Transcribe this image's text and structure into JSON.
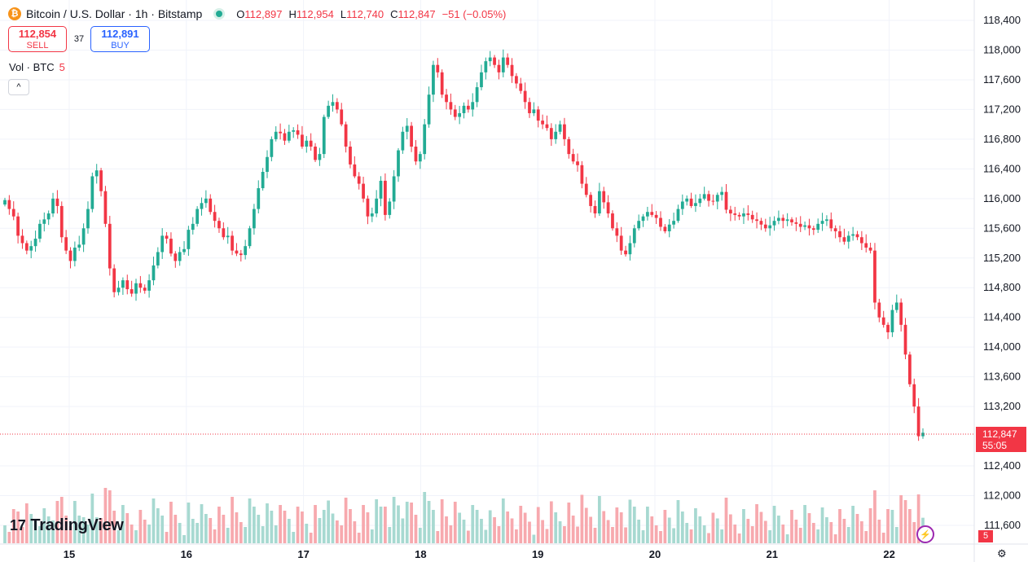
{
  "header": {
    "title": "Bitcoin / U.S. Dollar · 1h · Bitstamp",
    "coin_icon": "bitcoin-icon",
    "coin_glyph": "₿",
    "o_label": "O",
    "o_value": "112,897",
    "h_label": "H",
    "h_value": "112,954",
    "l_label": "L",
    "l_value": "112,740",
    "c_label": "C",
    "c_value": "112,847",
    "change": "−51 (−0.05%)"
  },
  "trade": {
    "sell_price": "112,854",
    "sell_label": "SELL",
    "buy_price": "112,891",
    "buy_label": "BUY",
    "spread": "37"
  },
  "volume_legend": {
    "label": "Vol · BTC",
    "value": "5"
  },
  "collapse_glyph": "^",
  "logo": {
    "text": "TradingView",
    "mark": "17"
  },
  "price_tag": {
    "price": "112,847",
    "countdown": "55:05"
  },
  "volume_tag": "5",
  "colors": {
    "up": "#22ab94",
    "down": "#f23645",
    "up_vol": "#a7d9d1",
    "down_vol": "#f7a9ae"
  },
  "chart_data": {
    "type": "candlestick",
    "symbol": "Bitcoin / U.S. Dollar",
    "interval": "1h",
    "exchange": "Bitstamp",
    "y_axis": {
      "ticks": [
        "118,400",
        "118,000",
        "117,600",
        "117,200",
        "116,800",
        "116,400",
        "116,000",
        "115,600",
        "115,200",
        "114,800",
        "114,400",
        "114,000",
        "113,600",
        "113,200",
        "112,400",
        "112,000",
        "111,600"
      ],
      "range": [
        111400,
        118600
      ]
    },
    "x_axis": {
      "ticks": [
        "15",
        "16",
        "17",
        "18",
        "19",
        "20",
        "21",
        "22"
      ]
    },
    "last_price": 112847,
    "grid": true,
    "candles_close": [
      115980,
      115860,
      115760,
      115500,
      115400,
      115300,
      115360,
      115460,
      115660,
      115720,
      115800,
      116000,
      115900,
      115480,
      115300,
      115160,
      115340,
      115380,
      115600,
      115860,
      116300,
      116380,
      116100,
      115660,
      115060,
      114740,
      114800,
      114900,
      114780,
      114720,
      114860,
      114800,
      114760,
      114900,
      115100,
      115280,
      115500,
      115460,
      115260,
      115160,
      115280,
      115320,
      115580,
      115660,
      115860,
      115940,
      116000,
      115820,
      115700,
      115600,
      115480,
      115500,
      115300,
      115260,
      115240,
      115360,
      115600,
      115860,
      116140,
      116360,
      116560,
      116800,
      116900,
      116880,
      116780,
      116900,
      116920,
      116860,
      116700,
      116780,
      116700,
      116520,
      116600,
      117100,
      117250,
      117300,
      117200,
      117000,
      116700,
      116460,
      116300,
      116200,
      116000,
      115760,
      115800,
      116000,
      116240,
      115780,
      115960,
      116300,
      116650,
      116900,
      116980,
      116700,
      116500,
      116600,
      117000,
      117400,
      117800,
      117700,
      117400,
      117300,
      117200,
      117100,
      117150,
      117250,
      117200,
      117300,
      117500,
      117700,
      117850,
      117900,
      117800,
      117700,
      117900,
      117800,
      117650,
      117550,
      117450,
      117300,
      117150,
      117200,
      117050,
      117000,
      116950,
      116800,
      116900,
      117000,
      116800,
      116600,
      116500,
      116450,
      116200,
      116050,
      115900,
      115800,
      116100,
      115950,
      115800,
      115600,
      115500,
      115300,
      115250,
      115400,
      115600,
      115700,
      115760,
      115820,
      115780,
      115740,
      115620,
      115560,
      115650,
      115700,
      115860,
      115960,
      116000,
      115900,
      115940,
      116000,
      116060,
      115970,
      115960,
      116050,
      116090,
      115850,
      115800,
      115780,
      115760,
      115800,
      115780,
      115720,
      115700,
      115650,
      115600,
      115640,
      115700,
      115740,
      115700,
      115720,
      115680,
      115660,
      115620,
      115640,
      115600,
      115580,
      115660,
      115700,
      115720,
      115600,
      115560,
      115480,
      115420,
      115500,
      115520,
      115480,
      115400,
      115340,
      115300,
      114600,
      114400,
      114300,
      114200,
      114500,
      114600,
      114300,
      113900,
      113500,
      113200,
      112800,
      112847
    ]
  }
}
